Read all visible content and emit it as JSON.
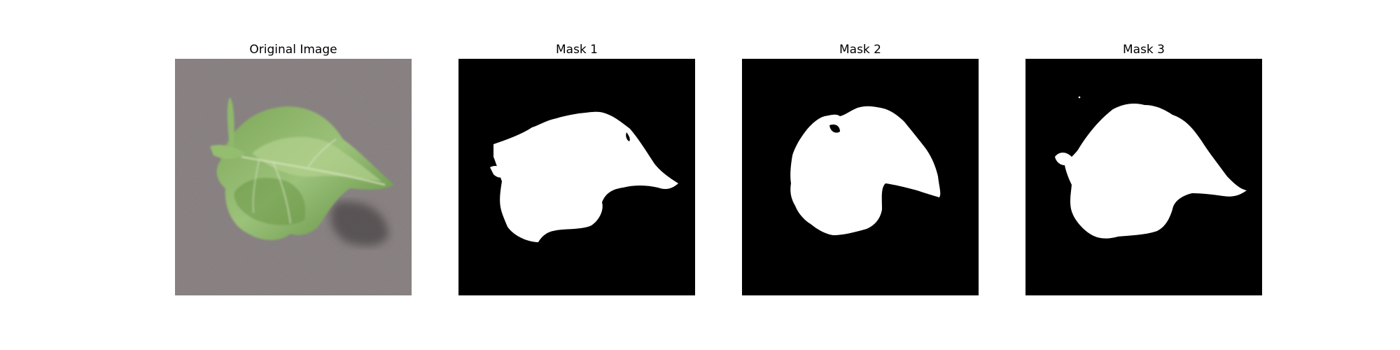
{
  "figure": {
    "panels": [
      {
        "title": "Original Image",
        "kind": "photo",
        "subject": "leaf"
      },
      {
        "title": "Mask 1",
        "kind": "mask"
      },
      {
        "title": "Mask 2",
        "kind": "mask"
      },
      {
        "title": "Mask 3",
        "kind": "mask"
      }
    ]
  },
  "colors": {
    "background": "#ffffff",
    "mask_background": "#000000",
    "mask_foreground": "#ffffff",
    "ground": "#8e8687",
    "leaf_light": "#9cc27a",
    "leaf_dark": "#4f7a34",
    "shadow": "#4a4446"
  }
}
